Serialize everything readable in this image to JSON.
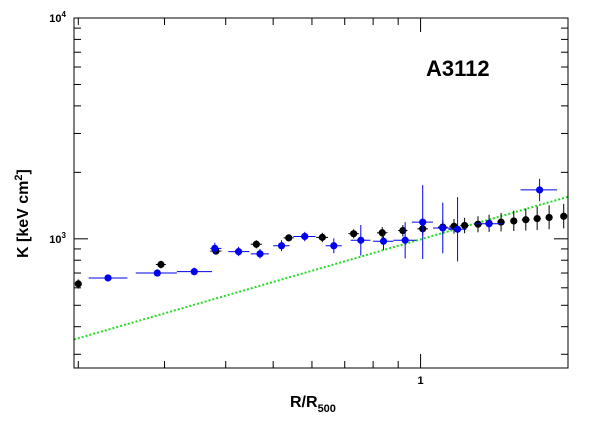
{
  "chart_data": {
    "type": "scatter",
    "title": "",
    "annotation": "A3112",
    "xlabel": "R/R",
    "xlabel_sub": "500",
    "ylabel": "K [keV cm",
    "ylabel_sup": "2",
    "ylabel_close": "]",
    "x_scale": "log",
    "y_scale": "log",
    "xlim": [
      0.196,
      2.0
    ],
    "ylim": [
      260,
      10000
    ],
    "x_tick_labels": [
      {
        "value": 1,
        "text": "1"
      }
    ],
    "y_tick_labels": [
      {
        "value": 1000,
        "base": "10",
        "exp": "3"
      },
      {
        "value": 10000,
        "base": "10",
        "exp": "4"
      }
    ],
    "grid": false,
    "series": [
      {
        "color": "#000000",
        "points": [
          {
            "x": 0.2,
            "y": 625,
            "xerr": [
              0.198,
              0.203
            ],
            "yerr": [
              595,
              655
            ]
          },
          {
            "x": 0.295,
            "y": 765,
            "xerr": [
              0.288,
              0.302
            ],
            "yerr": [
              735,
              795
            ]
          },
          {
            "x": 0.382,
            "y": 880,
            "xerr": [
              0.372,
              0.392
            ],
            "yerr": [
              848,
              915
            ]
          },
          {
            "x": 0.462,
            "y": 945,
            "xerr": [
              0.45,
              0.474
            ],
            "yerr": [
              905,
              985
            ]
          },
          {
            "x": 0.538,
            "y": 1010,
            "xerr": [
              0.525,
              0.551
            ],
            "yerr": [
              980,
              1040
            ]
          },
          {
            "x": 0.63,
            "y": 1015,
            "xerr": [
              0.612,
              0.647
            ],
            "yerr": [
              965,
              1065
            ]
          },
          {
            "x": 0.73,
            "y": 1055,
            "xerr": [
              0.712,
              0.748
            ],
            "yerr": [
              1005,
              1105
            ]
          },
          {
            "x": 0.835,
            "y": 1065,
            "xerr": [
              0.815,
              0.856
            ],
            "yerr": [
              1000,
              1130
            ]
          },
          {
            "x": 0.92,
            "y": 1090,
            "xerr": [
              0.9,
              0.94
            ],
            "yerr": [
              1025,
              1155
            ]
          },
          {
            "x": 1.01,
            "y": 1110,
            "xerr": [
              0.985,
              1.035
            ],
            "yerr": [
              1035,
              1190
            ]
          },
          {
            "x": 1.11,
            "y": 1130,
            "xerr": [
              1.085,
              1.135
            ],
            "yerr": [
              1050,
              1215
            ]
          },
          {
            "x": 1.17,
            "y": 1140,
            "xerr": [
              1.145,
              1.195
            ],
            "yerr": [
              1055,
              1230
            ]
          },
          {
            "x": 1.23,
            "y": 1150,
            "xerr": [
              1.205,
              1.255
            ],
            "yerr": [
              1060,
              1245
            ]
          },
          {
            "x": 1.31,
            "y": 1165,
            "xerr": [
              1.285,
              1.335
            ],
            "yerr": [
              1070,
              1265
            ]
          },
          {
            "x": 1.38,
            "y": 1175,
            "xerr": [
              1.355,
              1.405
            ],
            "yerr": [
              1075,
              1285
            ]
          },
          {
            "x": 1.46,
            "y": 1190,
            "xerr": [
              1.435,
              1.485
            ],
            "yerr": [
              1080,
              1310
            ]
          },
          {
            "x": 1.55,
            "y": 1205,
            "xerr": [
              1.525,
              1.575
            ],
            "yerr": [
              1085,
              1340
            ]
          },
          {
            "x": 1.64,
            "y": 1220,
            "xerr": [
              1.61,
              1.67
            ],
            "yerr": [
              1090,
              1370
            ]
          },
          {
            "x": 1.73,
            "y": 1235,
            "xerr": [
              1.7,
              1.76
            ],
            "yerr": [
              1095,
              1400
            ]
          },
          {
            "x": 1.83,
            "y": 1250,
            "xerr": [
              1.8,
              1.86
            ],
            "yerr": [
              1105,
              1420
            ]
          },
          {
            "x": 1.96,
            "y": 1265,
            "xerr": [
              1.93,
              1.99
            ],
            "yerr": [
              1115,
              1440
            ]
          }
        ]
      },
      {
        "color": "#0000ee",
        "points": [
          {
            "x": 0.23,
            "y": 665,
            "xerr": [
              0.21,
              0.252
            ],
            "yerr": [
              640,
              690
            ]
          },
          {
            "x": 0.29,
            "y": 700,
            "xerr": [
              0.262,
              0.318
            ],
            "yerr": [
              675,
              725
            ]
          },
          {
            "x": 0.345,
            "y": 710,
            "xerr": [
              0.318,
              0.375
            ],
            "yerr": [
              685,
              740
            ]
          },
          {
            "x": 0.38,
            "y": 905,
            "xerr": [
              0.372,
              0.392
            ],
            "yerr": [
              850,
              960
            ]
          },
          {
            "x": 0.425,
            "y": 875,
            "xerr": [
              0.405,
              0.447
            ],
            "yerr": [
              835,
              920
            ]
          },
          {
            "x": 0.47,
            "y": 855,
            "xerr": [
              0.45,
              0.49
            ],
            "yerr": [
              815,
              900
            ]
          },
          {
            "x": 0.52,
            "y": 930,
            "xerr": [
              0.5,
              0.54
            ],
            "yerr": [
              880,
              985
            ]
          },
          {
            "x": 0.58,
            "y": 1025,
            "xerr": [
              0.55,
              0.61
            ],
            "yerr": [
              975,
              1075
            ]
          },
          {
            "x": 0.665,
            "y": 930,
            "xerr": [
              0.64,
              0.69
            ],
            "yerr": [
              860,
              1005
            ]
          },
          {
            "x": 0.755,
            "y": 985,
            "xerr": [
              0.72,
              0.79
            ],
            "yerr": [
              840,
              1155
            ]
          },
          {
            "x": 0.84,
            "y": 975,
            "xerr": [
              0.8,
              0.88
            ],
            "yerr": [
              890,
              1065
            ]
          },
          {
            "x": 0.93,
            "y": 985,
            "xerr": [
              0.88,
              0.98
            ],
            "yerr": [
              815,
              1190
            ]
          },
          {
            "x": 1.01,
            "y": 1190,
            "xerr": [
              0.96,
              1.06
            ],
            "yerr": [
              810,
              1750
            ]
          },
          {
            "x": 1.11,
            "y": 1120,
            "xerr": [
              1.06,
              1.16
            ],
            "yerr": [
              860,
              1460
            ]
          },
          {
            "x": 1.19,
            "y": 1105,
            "xerr": [
              1.14,
              1.24
            ],
            "yerr": [
              790,
              1545
            ]
          },
          {
            "x": 1.38,
            "y": 1170,
            "xerr": [
              1.29,
              1.47
            ],
            "yerr": [
              1110,
              1235
            ]
          },
          {
            "x": 1.75,
            "y": 1665,
            "xerr": [
              1.6,
              1.9
            ],
            "yerr": [
              1480,
              1870
            ]
          }
        ]
      }
    ],
    "fit_line": {
      "color": "#22dd22",
      "style": "dotted",
      "x": [
        0.196,
        2.0
      ],
      "y": [
        350,
        1550
      ]
    }
  }
}
